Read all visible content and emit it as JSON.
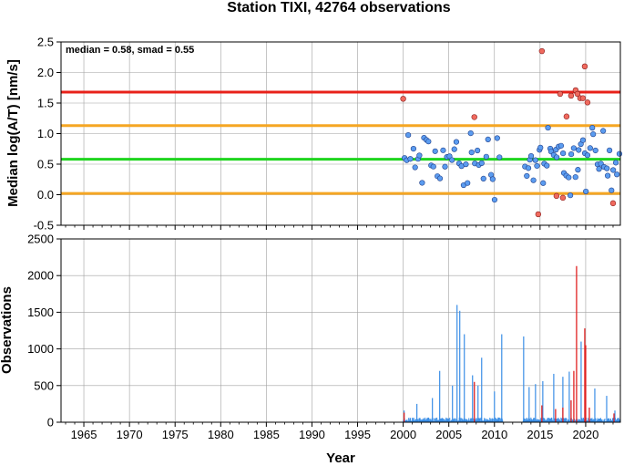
{
  "chart_data": [
    {
      "type": "scatter",
      "title": "Station TIXI, 42764 observations",
      "xlabel": "",
      "ylabel": "Median log(A/T) [nm/s]",
      "xlim": [
        1962.5,
        2023.8
      ],
      "ylim": [
        -0.5,
        2.5
      ],
      "y_ticks": [
        "-0.5",
        "0.0",
        "0.5",
        "1.0",
        "1.5",
        "2.0",
        "2.5"
      ],
      "grid": true,
      "annotation": "median = 0.58, smad = 0.55",
      "reference_lines": [
        {
          "y": 1.68,
          "color": "#e8211a"
        },
        {
          "y": 1.13,
          "color": "#f5a623"
        },
        {
          "y": 0.58,
          "color": "#1ed41e"
        },
        {
          "y": 0.02,
          "color": "#f5a623"
        }
      ],
      "colors": {
        "normal": "#5b9cf0",
        "outlier": "#f06a5e"
      },
      "outliers": [
        {
          "x": 2000.0,
          "y": 1.57
        },
        {
          "x": 2007.8,
          "y": 1.27
        },
        {
          "x": 2014.8,
          "y": -0.32
        },
        {
          "x": 2015.2,
          "y": 2.35
        },
        {
          "x": 2016.8,
          "y": -0.02
        },
        {
          "x": 2017.2,
          "y": 1.65
        },
        {
          "x": 2017.5,
          "y": -0.05
        },
        {
          "x": 2017.9,
          "y": 1.28
        },
        {
          "x": 2018.4,
          "y": 1.62
        },
        {
          "x": 2018.9,
          "y": 1.71
        },
        {
          "x": 2019.1,
          "y": 1.65
        },
        {
          "x": 2019.4,
          "y": 1.58
        },
        {
          "x": 2019.7,
          "y": 1.58
        },
        {
          "x": 2019.9,
          "y": 2.1
        },
        {
          "x": 2020.2,
          "y": 1.51
        },
        {
          "x": 2023.0,
          "y": -0.14
        }
      ]
    },
    {
      "type": "bar",
      "title": "",
      "xlabel": "Year",
      "ylabel": "Observations",
      "xlim": [
        1962.5,
        2023.8
      ],
      "ylim": [
        0,
        2500
      ],
      "x_ticks": [
        "1965",
        "1970",
        "1975",
        "1980",
        "1985",
        "1990",
        "1995",
        "2000",
        "2005",
        "2010",
        "2015",
        "2020"
      ],
      "y_ticks": [
        "0",
        "500",
        "1000",
        "1500",
        "2000",
        "2500"
      ],
      "grid": true,
      "colors": {
        "normal": "#3a8ee6",
        "outlier": "#e02020"
      },
      "peaks": [
        {
          "x": 2000.1,
          "y": 160
        },
        {
          "x": 2001.5,
          "y": 250
        },
        {
          "x": 2003.2,
          "y": 330
        },
        {
          "x": 2004.0,
          "y": 700
        },
        {
          "x": 2005.4,
          "y": 500
        },
        {
          "x": 2005.9,
          "y": 1600
        },
        {
          "x": 2006.2,
          "y": 1520
        },
        {
          "x": 2006.7,
          "y": 1200
        },
        {
          "x": 2007.6,
          "y": 640
        },
        {
          "x": 2008.2,
          "y": 500
        },
        {
          "x": 2008.6,
          "y": 880
        },
        {
          "x": 2010.0,
          "y": 420
        },
        {
          "x": 2010.8,
          "y": 1200
        },
        {
          "x": 2013.2,
          "y": 1170
        },
        {
          "x": 2013.8,
          "y": 480
        },
        {
          "x": 2014.5,
          "y": 520
        },
        {
          "x": 2015.3,
          "y": 560
        },
        {
          "x": 2016.5,
          "y": 660
        },
        {
          "x": 2017.5,
          "y": 620
        },
        {
          "x": 2018.2,
          "y": 690
        },
        {
          "x": 2019.5,
          "y": 1100
        },
        {
          "x": 2021.0,
          "y": 460
        },
        {
          "x": 2022.3,
          "y": 360
        },
        {
          "x": 2023.2,
          "y": 160
        }
      ],
      "red_peaks": [
        {
          "x": 2000.1,
          "y": 130
        },
        {
          "x": 2007.8,
          "y": 550
        },
        {
          "x": 2015.2,
          "y": 230
        },
        {
          "x": 2016.7,
          "y": 180
        },
        {
          "x": 2017.5,
          "y": 200
        },
        {
          "x": 2018.4,
          "y": 300
        },
        {
          "x": 2018.7,
          "y": 700
        },
        {
          "x": 2019.0,
          "y": 2130
        },
        {
          "x": 2019.9,
          "y": 1280
        },
        {
          "x": 2020.0,
          "y": 1050
        },
        {
          "x": 2020.4,
          "y": 200
        },
        {
          "x": 2023.1,
          "y": 120
        }
      ]
    }
  ]
}
